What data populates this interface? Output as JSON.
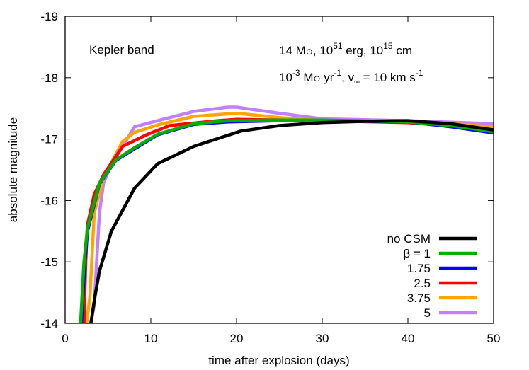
{
  "chart_data": {
    "type": "line",
    "title": "",
    "xlabel": "time after explosion (days)",
    "ylabel": "absolute magnitude",
    "xlim": [
      0,
      50
    ],
    "ylim": [
      -14,
      -19
    ],
    "y_inverted": true,
    "grid": false,
    "legend_position": "bottom-right",
    "xticks": [
      "0",
      "10",
      "20",
      "30",
      "40",
      "50"
    ],
    "yticks": [
      "-14",
      "-15",
      "-16",
      "-17",
      "-18",
      "-19"
    ],
    "annotations": {
      "band": "Kepler band",
      "line1": {
        "a": "14 M",
        "sun": "⊙",
        "b": ", 10",
        "exp1": "51",
        "c": " erg, 10",
        "exp2": "15",
        "d": " cm"
      },
      "line2": {
        "a": "10",
        "exp1": "-3",
        "b": " M",
        "sun": "⊙",
        "c": " yr",
        "exp2": "-1",
        "d": ", v",
        "sub": "∞",
        "e": " = 10 km s",
        "exp3": "-1"
      }
    },
    "series": [
      {
        "name": "no CSM",
        "color": "#000000",
        "x": [
          3.0,
          3.5,
          4.0,
          5.4,
          8.1,
          10.8,
          15,
          20.5,
          25,
          30,
          35,
          40,
          45,
          50
        ],
        "y": [
          -14.0,
          -14.45,
          -14.85,
          -15.5,
          -16.2,
          -16.6,
          -16.88,
          -17.13,
          -17.22,
          -17.27,
          -17.29,
          -17.3,
          -17.25,
          -17.15
        ]
      },
      {
        "name": "β = 1",
        "color": "#00b000",
        "x": [
          1.8,
          2.2,
          2.6,
          4.0,
          5.9,
          8.1,
          10.8,
          15,
          19,
          25,
          30,
          40,
          45,
          50
        ],
        "y": [
          -14.0,
          -15.0,
          -15.55,
          -16.28,
          -16.66,
          -16.86,
          -17.08,
          -17.25,
          -17.3,
          -17.31,
          -17.31,
          -17.28,
          -17.22,
          -17.12
        ]
      },
      {
        "name": "1.75",
        "color": "#0000ff",
        "x": [
          1.9,
          2.3,
          2.6,
          4.0,
          5.9,
          8.1,
          10.8,
          15,
          19,
          25,
          30,
          40,
          45,
          50
        ],
        "y": [
          -14.0,
          -15.0,
          -15.5,
          -16.27,
          -16.65,
          -16.84,
          -17.07,
          -17.24,
          -17.28,
          -17.3,
          -17.3,
          -17.28,
          -17.2,
          -17.1
        ]
      },
      {
        "name": "2.5",
        "color": "#ff0000",
        "x": [
          2.2,
          2.4,
          2.6,
          3.4,
          4.5,
          6.7,
          9.5,
          12.2,
          17.8,
          20,
          30,
          40,
          45,
          50
        ],
        "y": [
          -14.0,
          -15.0,
          -15.6,
          -16.1,
          -16.42,
          -16.88,
          -17.07,
          -17.22,
          -17.3,
          -17.32,
          -17.3,
          -17.27,
          -17.22,
          -17.15
        ]
      },
      {
        "name": "3.75",
        "color": "#ffa500",
        "x": [
          2.5,
          2.9,
          3.4,
          4.5,
          6.7,
          8.1,
          10.8,
          15,
          20,
          25,
          30,
          40,
          45,
          50
        ],
        "y": [
          -14.0,
          -14.45,
          -15.8,
          -16.38,
          -16.96,
          -17.11,
          -17.23,
          -17.37,
          -17.42,
          -17.35,
          -17.3,
          -17.28,
          -17.25,
          -17.2
        ]
      },
      {
        "name": "5",
        "color": "#c080ff",
        "x": [
          3.0,
          3.4,
          4.0,
          4.5,
          5.4,
          8.1,
          10.8,
          15,
          19,
          20,
          25,
          30,
          40,
          50
        ],
        "y": [
          -14.0,
          -14.3,
          -15.8,
          -16.3,
          -16.58,
          -17.2,
          -17.3,
          -17.45,
          -17.52,
          -17.52,
          -17.42,
          -17.33,
          -17.3,
          -17.25
        ]
      }
    ]
  }
}
